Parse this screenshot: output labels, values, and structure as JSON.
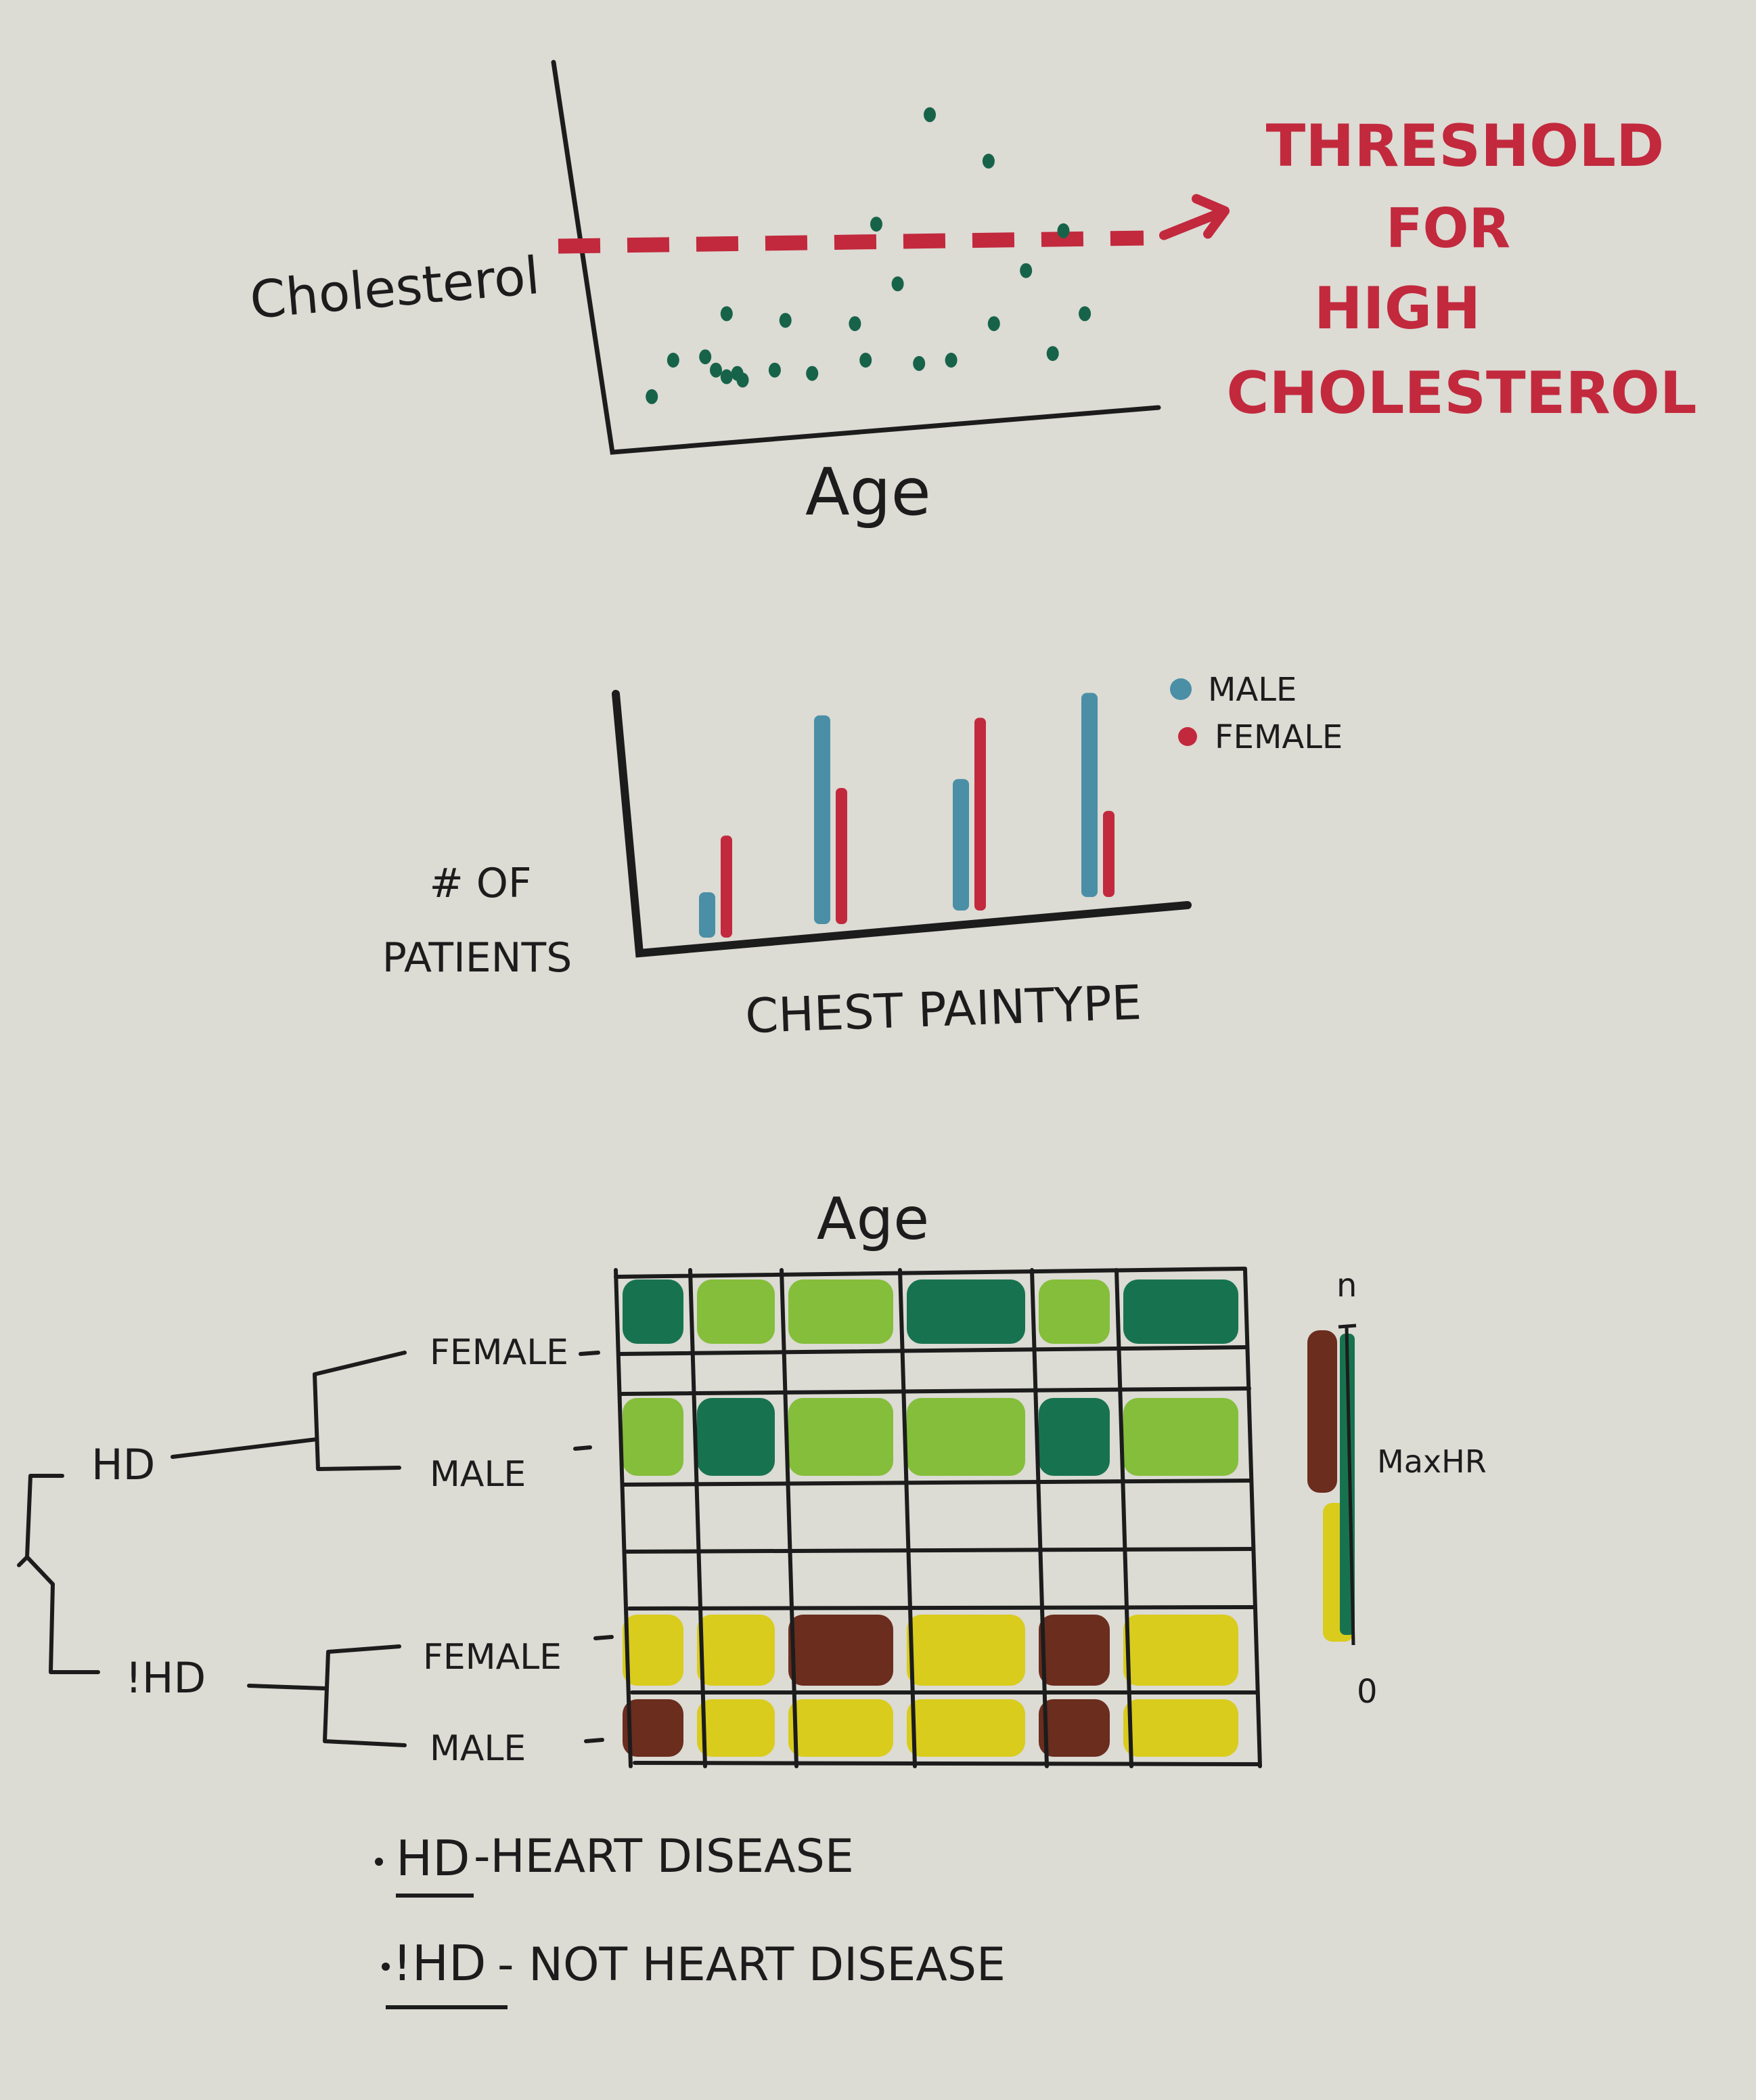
{
  "chart_data": [
    {
      "type": "scatter",
      "xlabel": "Age",
      "ylabel": "Cholesterol",
      "xlim": [
        0,
        100
      ],
      "ylim": [
        0,
        100
      ],
      "threshold": {
        "value": 56,
        "annotation": [
          "THRESHOLD",
          "FOR",
          "HIGH",
          "CHOLESTEROL"
        ]
      },
      "x": [
        8,
        12,
        18,
        20,
        22,
        22,
        24,
        25,
        31,
        33,
        38,
        46,
        48,
        50,
        54,
        58,
        60,
        64,
        71,
        72,
        78,
        83,
        85,
        89
      ],
      "y": [
        9,
        20,
        21,
        17,
        15,
        34,
        16,
        14,
        17,
        32,
        16,
        31,
        20,
        61,
        43,
        19,
        94,
        20,
        80,
        31,
        47,
        22,
        59,
        34
      ]
    },
    {
      "type": "bar",
      "xlabel": "CHEST PAINTYPE",
      "ylabel": "# OF PATIENTS",
      "categories": [
        "",
        "",
        "",
        ""
      ],
      "ylim": [
        0,
        100
      ],
      "legend": "top-right",
      "series": [
        {
          "name": "MALE",
          "color": "#4a8fa6",
          "values": [
            20,
            92,
            58,
            90
          ]
        },
        {
          "name": "FEMALE",
          "color": "#c2293d",
          "values": [
            45,
            60,
            85,
            38
          ]
        }
      ]
    },
    {
      "type": "heatmap",
      "title": "Age",
      "colorbar_label": "MaxHR",
      "colorbar_ticks": [
        "n",
        "0"
      ],
      "groups": [
        {
          "label": "HD",
          "rows": [
            "FEMALE",
            "MALE"
          ]
        },
        {
          "label": "!HD",
          "rows": [
            "FEMALE",
            "MALE"
          ]
        }
      ],
      "rows": [
        {
          "values": [
            88,
            55,
            60,
            95,
            55,
            90
          ]
        },
        {
          "values": [
            null,
            null,
            null,
            null,
            null,
            null
          ]
        },
        {
          "values": [
            55,
            88,
            60,
            60,
            88,
            55
          ]
        },
        {
          "values": [
            null,
            null,
            null,
            null,
            null,
            null
          ]
        },
        {
          "values": [
            null,
            null,
            null,
            null,
            null,
            null
          ]
        },
        {
          "values": [
            30,
            30,
            5,
            30,
            5,
            30
          ]
        },
        {
          "values": [
            5,
            30,
            30,
            30,
            5,
            30
          ]
        }
      ],
      "notes": [
        {
          "term": "HD",
          "definition": "-HEART DISEASE"
        },
        {
          "term": "!HD",
          "definition": "- NOT HEART DISEASE"
        }
      ]
    }
  ]
}
